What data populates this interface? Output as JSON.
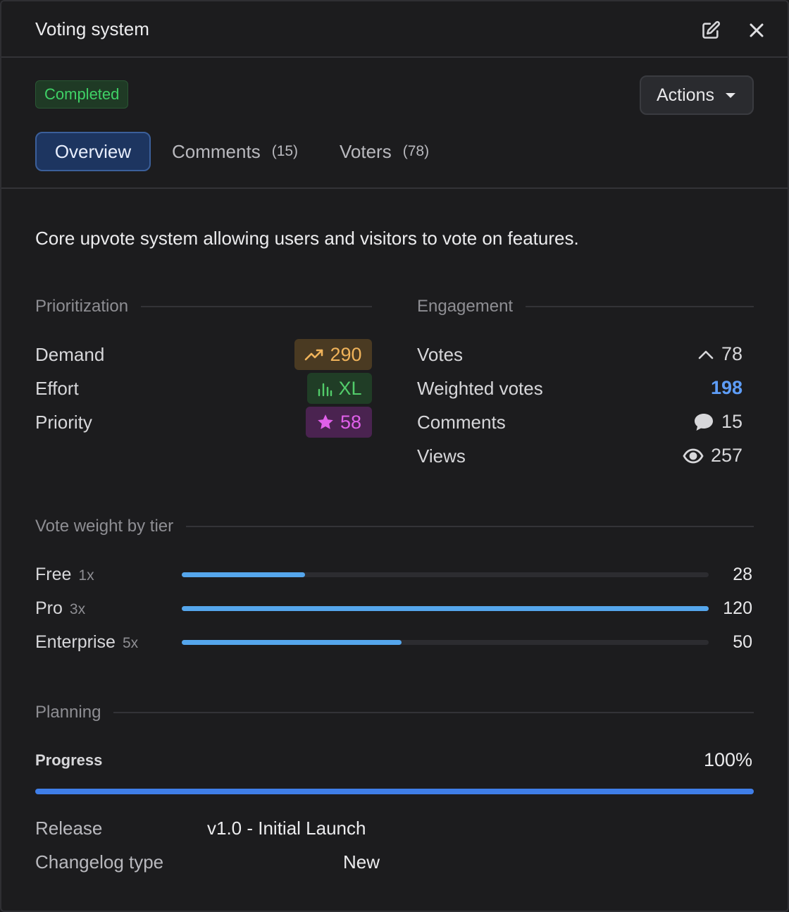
{
  "header": {
    "title": "Voting system",
    "edit_icon": "edit-icon",
    "close_icon": "close-icon"
  },
  "status": {
    "label": "Completed",
    "color": "#3fd166"
  },
  "actions": {
    "label": "Actions"
  },
  "tabs": [
    {
      "label": "Overview",
      "count": ""
    },
    {
      "label": "Comments",
      "count": "(15)"
    },
    {
      "label": "Voters",
      "count": "(78)"
    }
  ],
  "description": "Core upvote system allowing users and visitors to vote on features.",
  "prioritization": {
    "heading": "Prioritization",
    "demand": {
      "label": "Demand",
      "value": "290",
      "icon": "trending-up-icon",
      "color": "#f0b35a"
    },
    "effort": {
      "label": "Effort",
      "value": "XL",
      "icon": "bar-chart-icon",
      "color": "#52cc6a"
    },
    "priority": {
      "label": "Priority",
      "value": "58",
      "icon": "star-icon",
      "color": "#e060ea"
    }
  },
  "engagement": {
    "heading": "Engagement",
    "votes": {
      "label": "Votes",
      "value": "78",
      "icon": "chevron-up-icon"
    },
    "weighted": {
      "label": "Weighted votes",
      "value": "198",
      "color": "#5e9df7"
    },
    "comments": {
      "label": "Comments",
      "value": "15",
      "icon": "chat-bubble-icon"
    },
    "views": {
      "label": "Views",
      "value": "257",
      "icon": "eye-icon"
    }
  },
  "tiers": {
    "heading": "Vote weight by tier",
    "max": 120,
    "items": [
      {
        "name": "Free",
        "mult": "1x",
        "value": "28"
      },
      {
        "name": "Pro",
        "mult": "3x",
        "value": "120"
      },
      {
        "name": "Enterprise",
        "mult": "5x",
        "value": "50"
      }
    ]
  },
  "planning": {
    "heading": "Planning",
    "progress_label": "Progress",
    "progress_value": "100%",
    "progress_fraction": 1.0,
    "release_label": "Release",
    "release_value": "v1.0 - Initial Launch",
    "changelog_label": "Changelog type",
    "changelog_value": "New"
  }
}
